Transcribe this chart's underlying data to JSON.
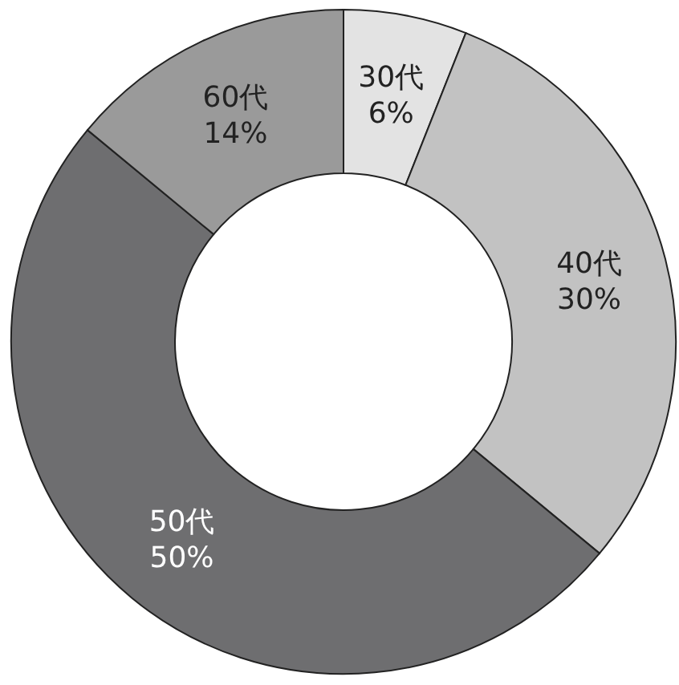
{
  "chart_data": {
    "type": "donut",
    "categories": [
      "30代",
      "40代",
      "50代",
      "60代"
    ],
    "values": [
      6,
      30,
      50,
      14
    ],
    "colors": [
      "#e3e3e3",
      "#c2c2c2",
      "#6e6e70",
      "#9a9a9a"
    ],
    "value_labels": [
      "6%",
      "30%",
      "50%",
      "14%"
    ]
  }
}
